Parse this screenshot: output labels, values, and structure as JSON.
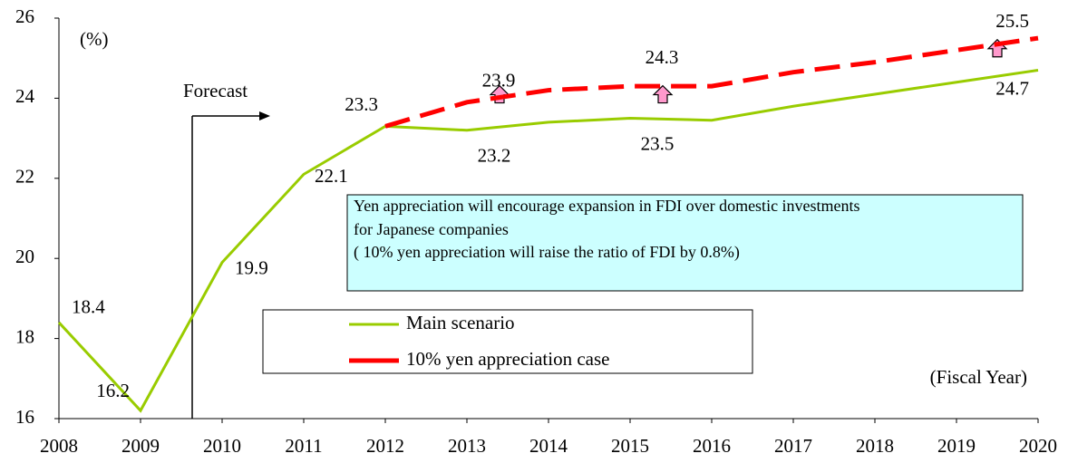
{
  "chart_data": {
    "type": "line",
    "y_axis_label": "(%)",
    "x_axis_label": "(Fiscal Year)",
    "forecast_label": "Forecast",
    "annotation": [
      "Yen appreciation will encourage expansion in FDI over domestic investments",
      "for Japanese companies",
      "( 10% yen appreciation will raise the ratio of FDI by 0.8%)"
    ],
    "x": [
      2008,
      2009,
      2010,
      2011,
      2012,
      2013,
      2014,
      2015,
      2016,
      2017,
      2018,
      2019,
      2020
    ],
    "xlim": [
      2008,
      2020
    ],
    "xticks": [
      2008,
      2009,
      2010,
      2011,
      2012,
      2013,
      2014,
      2015,
      2016,
      2017,
      2018,
      2019,
      2020
    ],
    "ylim": [
      16,
      26
    ],
    "yticks": [
      16,
      18,
      20,
      22,
      24,
      26
    ],
    "series": [
      {
        "name": "Main scenario",
        "color": "#99cc00",
        "dashed": false,
        "values": [
          18.4,
          16.2,
          19.9,
          22.1,
          23.3,
          23.2,
          23.4,
          23.5,
          23.45,
          23.8,
          24.1,
          24.4,
          24.7
        ],
        "value_labels": [
          "18.4",
          "16.2",
          "19.9",
          "22.1",
          "23.3",
          "23.2",
          null,
          "23.5",
          null,
          null,
          null,
          null,
          "24.7"
        ]
      },
      {
        "name": "10% yen appreciation case",
        "color": "#ff0000",
        "dashed": true,
        "values": [
          null,
          null,
          null,
          null,
          23.3,
          23.9,
          24.2,
          24.3,
          24.3,
          24.65,
          24.9,
          25.2,
          25.5
        ],
        "value_labels": [
          null,
          null,
          null,
          null,
          null,
          "23.9",
          null,
          "24.3",
          null,
          null,
          null,
          null,
          "25.5"
        ]
      }
    ]
  }
}
